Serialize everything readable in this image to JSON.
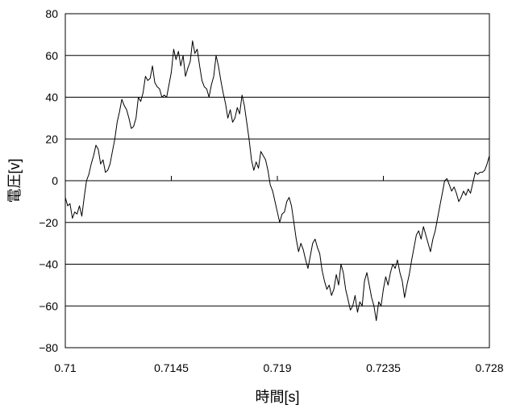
{
  "chart_data": {
    "type": "line",
    "xlabel": "時間[s]",
    "ylabel": "電圧[v]",
    "xlim": [
      0.71,
      0.728
    ],
    "ylim": [
      -80,
      80
    ],
    "x_ticks": [
      "0.71",
      "0.7145",
      "0.719",
      "0.7235",
      "0.728"
    ],
    "y_ticks": [
      "80",
      "60",
      "40",
      "20",
      "0",
      "-20",
      "-40",
      "-60",
      "-80"
    ],
    "grid": "horizontal",
    "legend": "none",
    "line_color": "#000000",
    "series": [
      {
        "points": [
          [
            0.71,
            -8
          ],
          [
            0.7101,
            -12
          ],
          [
            0.7102,
            -11
          ],
          [
            0.7103,
            -18
          ],
          [
            0.7104,
            -15
          ],
          [
            0.7105,
            -16
          ],
          [
            0.7106,
            -12
          ],
          [
            0.7107,
            -17
          ],
          [
            0.7108,
            -8
          ],
          [
            0.7109,
            0
          ],
          [
            0.711,
            3
          ],
          [
            0.7111,
            8
          ],
          [
            0.7112,
            12
          ],
          [
            0.7113,
            17
          ],
          [
            0.7114,
            15
          ],
          [
            0.7115,
            8
          ],
          [
            0.7116,
            10
          ],
          [
            0.7117,
            4
          ],
          [
            0.7118,
            5
          ],
          [
            0.7119,
            8
          ],
          [
            0.712,
            14
          ],
          [
            0.7121,
            20
          ],
          [
            0.7122,
            28
          ],
          [
            0.7123,
            33
          ],
          [
            0.7124,
            39
          ],
          [
            0.7125,
            36
          ],
          [
            0.7126,
            34
          ],
          [
            0.7127,
            30
          ],
          [
            0.7128,
            25
          ],
          [
            0.7129,
            26
          ],
          [
            0.713,
            30
          ],
          [
            0.7131,
            40
          ],
          [
            0.7132,
            38
          ],
          [
            0.7133,
            42
          ],
          [
            0.7134,
            50
          ],
          [
            0.7135,
            48
          ],
          [
            0.7136,
            49
          ],
          [
            0.7137,
            55
          ],
          [
            0.7138,
            47
          ],
          [
            0.7139,
            45
          ],
          [
            0.714,
            44
          ],
          [
            0.7141,
            40
          ],
          [
            0.7142,
            41
          ],
          [
            0.7143,
            40
          ],
          [
            0.7144,
            46
          ],
          [
            0.7145,
            52
          ],
          [
            0.7146,
            63
          ],
          [
            0.7147,
            58
          ],
          [
            0.7148,
            62
          ],
          [
            0.7149,
            55
          ],
          [
            0.715,
            60
          ],
          [
            0.7151,
            50
          ],
          [
            0.7152,
            54
          ],
          [
            0.7153,
            57
          ],
          [
            0.7154,
            67
          ],
          [
            0.7155,
            61
          ],
          [
            0.7156,
            63
          ],
          [
            0.7157,
            55
          ],
          [
            0.7158,
            48
          ],
          [
            0.7159,
            45
          ],
          [
            0.716,
            44
          ],
          [
            0.7161,
            40
          ],
          [
            0.7162,
            46
          ],
          [
            0.7163,
            50
          ],
          [
            0.7164,
            60
          ],
          [
            0.7165,
            55
          ],
          [
            0.7166,
            48
          ],
          [
            0.7167,
            42
          ],
          [
            0.7168,
            37
          ],
          [
            0.7169,
            30
          ],
          [
            0.717,
            34
          ],
          [
            0.7171,
            28
          ],
          [
            0.7172,
            30
          ],
          [
            0.7173,
            35
          ],
          [
            0.7174,
            32
          ],
          [
            0.7175,
            41
          ],
          [
            0.7176,
            36
          ],
          [
            0.7177,
            28
          ],
          [
            0.7178,
            20
          ],
          [
            0.7179,
            10
          ],
          [
            0.718,
            5
          ],
          [
            0.7181,
            9
          ],
          [
            0.7182,
            6
          ],
          [
            0.7183,
            14
          ],
          [
            0.7184,
            12
          ],
          [
            0.7185,
            10
          ],
          [
            0.7186,
            5
          ],
          [
            0.7187,
            -2
          ],
          [
            0.7188,
            -5
          ],
          [
            0.7189,
            -10
          ],
          [
            0.719,
            -15
          ],
          [
            0.7191,
            -20
          ],
          [
            0.7192,
            -16
          ],
          [
            0.7193,
            -15
          ],
          [
            0.7194,
            -10
          ],
          [
            0.7195,
            -8
          ],
          [
            0.7196,
            -12
          ],
          [
            0.7197,
            -20
          ],
          [
            0.7198,
            -28
          ],
          [
            0.7199,
            -34
          ],
          [
            0.72,
            -30
          ],
          [
            0.7201,
            -33
          ],
          [
            0.7202,
            -38
          ],
          [
            0.7203,
            -42
          ],
          [
            0.7204,
            -36
          ],
          [
            0.7205,
            -30
          ],
          [
            0.7206,
            -28
          ],
          [
            0.7207,
            -32
          ],
          [
            0.7208,
            -35
          ],
          [
            0.7209,
            -43
          ],
          [
            0.721,
            -48
          ],
          [
            0.7211,
            -52
          ],
          [
            0.7212,
            -50
          ],
          [
            0.7213,
            -55
          ],
          [
            0.7214,
            -52
          ],
          [
            0.7215,
            -45
          ],
          [
            0.7216,
            -50
          ],
          [
            0.7217,
            -40
          ],
          [
            0.7218,
            -44
          ],
          [
            0.7219,
            -52
          ],
          [
            0.722,
            -57
          ],
          [
            0.7221,
            -62
          ],
          [
            0.7222,
            -60
          ],
          [
            0.7223,
            -55
          ],
          [
            0.7224,
            -63
          ],
          [
            0.7225,
            -58
          ],
          [
            0.7226,
            -60
          ],
          [
            0.7227,
            -48
          ],
          [
            0.7228,
            -44
          ],
          [
            0.7229,
            -50
          ],
          [
            0.723,
            -56
          ],
          [
            0.7231,
            -60
          ],
          [
            0.7232,
            -67
          ],
          [
            0.7233,
            -58
          ],
          [
            0.7234,
            -60
          ],
          [
            0.7235,
            -52
          ],
          [
            0.7236,
            -46
          ],
          [
            0.7237,
            -50
          ],
          [
            0.7238,
            -44
          ],
          [
            0.7239,
            -40
          ],
          [
            0.724,
            -42
          ],
          [
            0.7241,
            -38
          ],
          [
            0.7242,
            -44
          ],
          [
            0.7243,
            -48
          ],
          [
            0.7244,
            -56
          ],
          [
            0.7245,
            -50
          ],
          [
            0.7246,
            -45
          ],
          [
            0.7247,
            -38
          ],
          [
            0.7248,
            -32
          ],
          [
            0.7249,
            -26
          ],
          [
            0.725,
            -24
          ],
          [
            0.7251,
            -28
          ],
          [
            0.7252,
            -22
          ],
          [
            0.7253,
            -26
          ],
          [
            0.7254,
            -30
          ],
          [
            0.7255,
            -34
          ],
          [
            0.7256,
            -28
          ],
          [
            0.7257,
            -24
          ],
          [
            0.7258,
            -18
          ],
          [
            0.7259,
            -12
          ],
          [
            0.726,
            -6
          ],
          [
            0.7261,
            0
          ],
          [
            0.7262,
            1
          ],
          [
            0.7263,
            -2
          ],
          [
            0.7264,
            -5
          ],
          [
            0.7265,
            -3
          ],
          [
            0.7266,
            -6
          ],
          [
            0.7267,
            -10
          ],
          [
            0.7268,
            -8
          ],
          [
            0.7269,
            -5
          ],
          [
            0.727,
            -7
          ],
          [
            0.7271,
            -4
          ],
          [
            0.7272,
            -6
          ],
          [
            0.7273,
            -1
          ],
          [
            0.7274,
            4
          ],
          [
            0.7275,
            3
          ],
          [
            0.7276,
            4
          ],
          [
            0.7277,
            4
          ],
          [
            0.7278,
            5
          ],
          [
            0.7279,
            8
          ],
          [
            0.728,
            12
          ]
        ]
      }
    ]
  }
}
